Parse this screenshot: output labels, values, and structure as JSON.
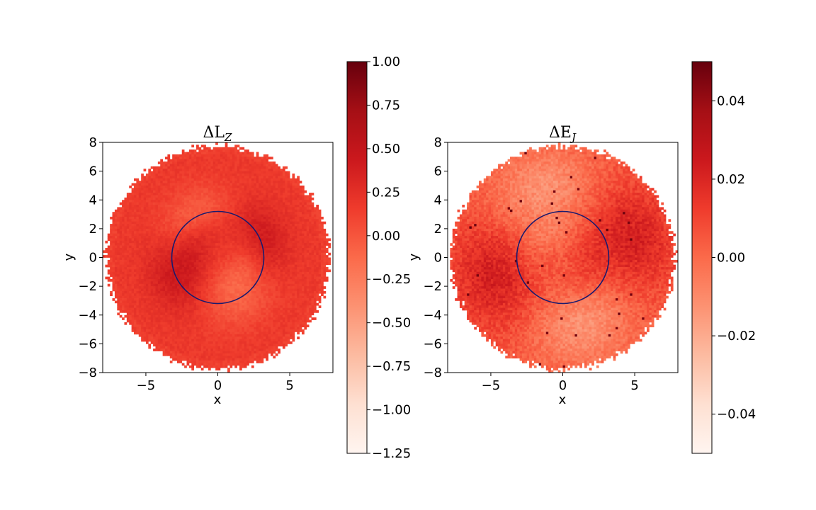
{
  "chart_data": [
    {
      "type": "heatmap",
      "title_main": "ΔL",
      "title_sub": "Z",
      "xlabel": "x",
      "ylabel": "y",
      "xlim": [
        -8,
        8
      ],
      "ylim": [
        -8,
        8
      ],
      "xticks": [
        "−5",
        "0",
        "5"
      ],
      "xtick_values": [
        -5,
        0,
        5
      ],
      "yticks": [
        "−8",
        "−6",
        "−4",
        "−2",
        "0",
        "2",
        "4",
        "6",
        "8"
      ],
      "ytick_values": [
        -8,
        -6,
        -4,
        -2,
        0,
        2,
        4,
        6,
        8
      ],
      "colormap": "Reds",
      "clim": [
        -1.25,
        1.0
      ],
      "colorbar_ticks": [
        "1.00",
        "0.75",
        "0.50",
        "0.25",
        "0.00",
        "−0.25",
        "−0.50",
        "−0.75",
        "−1.00",
        "−1.25"
      ],
      "colorbar_tick_values": [
        1.0,
        0.75,
        0.5,
        0.25,
        0.0,
        -0.25,
        -0.5,
        -0.75,
        -1.0,
        -1.25
      ],
      "disk_radius": 8,
      "circle": {
        "center": [
          0,
          0
        ],
        "radius": 3.2,
        "color": "#1a1a6e"
      },
      "grid": false
    },
    {
      "type": "heatmap",
      "title_main": "ΔE",
      "title_sub": "J",
      "xlabel": "x",
      "ylabel": "y",
      "xlim": [
        -8,
        8
      ],
      "ylim": [
        -8,
        8
      ],
      "xticks": [
        "−5",
        "0",
        "5"
      ],
      "xtick_values": [
        -5,
        0,
        5
      ],
      "yticks": [
        "−8",
        "−6",
        "−4",
        "−2",
        "0",
        "2",
        "4",
        "6",
        "8"
      ],
      "ytick_values": [
        -8,
        -6,
        -4,
        -2,
        0,
        2,
        4,
        6,
        8
      ],
      "colormap": "Reds",
      "clim": [
        -0.05,
        0.05
      ],
      "colorbar_ticks": [
        "0.04",
        "0.02",
        "0.00",
        "−0.02",
        "−0.04"
      ],
      "colorbar_tick_values": [
        0.04,
        0.02,
        0.0,
        -0.02,
        -0.04
      ],
      "disk_radius": 8,
      "circle": {
        "center": [
          0,
          0
        ],
        "radius": 3.2,
        "color": "#1a1a6e"
      },
      "grid": false
    }
  ]
}
